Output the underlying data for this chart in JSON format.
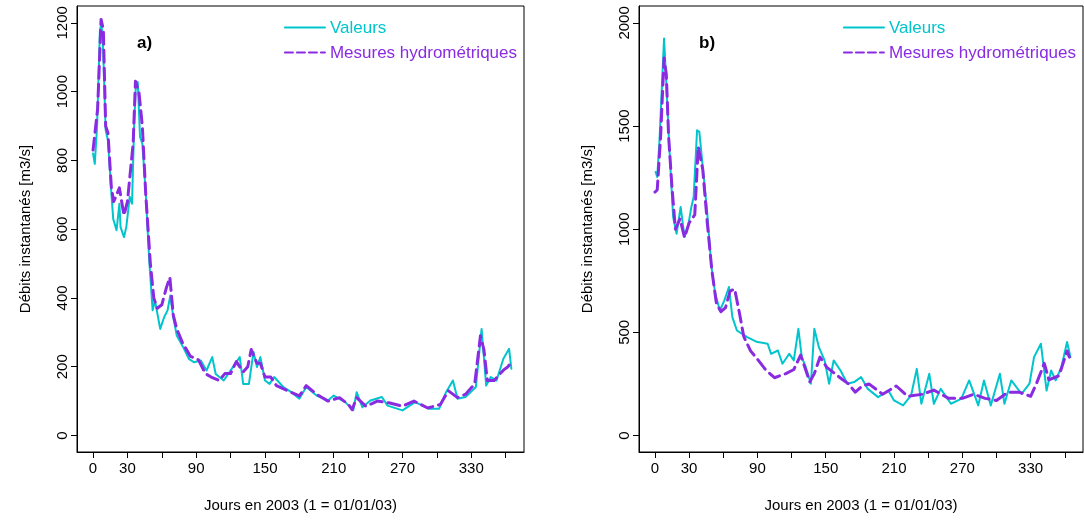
{
  "chart_data": [
    {
      "type": "line",
      "annotations": [
        "a)"
      ],
      "xlabel": "Jours en 2003 (1 = 01/01/03)",
      "ylabel": "Débits instantanés [m3/s]",
      "xlim": [
        -14,
        376
      ],
      "ylim": [
        -48,
        1249
      ],
      "xticks": [
        0,
        30,
        {
          "value": 60,
          "label": null
        },
        90,
        {
          "value": 120,
          "label": null
        },
        150,
        {
          "value": 180,
          "label": null
        },
        210,
        {
          "value": 240,
          "label": null
        },
        270,
        {
          "value": 300,
          "label": null
        },
        330,
        {
          "value": 360,
          "label": null
        }
      ],
      "yticks": [
        0,
        200,
        400,
        600,
        800,
        1000,
        1200
      ],
      "grid": false,
      "legend": "top right",
      "marker": "none",
      "series": [
        {
          "name": "Valeurs",
          "color": "#00c5cd",
          "line_style": "solid",
          "x": [
            0,
            1.5,
            3.5,
            6,
            7.3,
            8.8,
            11,
            13,
            16,
            17.6,
            20.5,
            23,
            24,
            27,
            29,
            32,
            34,
            36,
            37.5,
            39,
            41,
            43,
            46,
            49,
            52,
            54,
            58.6,
            62,
            65,
            67.4,
            70,
            73,
            78.6,
            83.6,
            88,
            94,
            99,
            104,
            107,
            114,
            122,
            128,
            131,
            136,
            140,
            143,
            146,
            150,
            154,
            158,
            166,
            173,
            180,
            186,
            195,
            205,
            210,
            220,
            227,
            230,
            235,
            242,
            252,
            257,
            270,
            281,
            293,
            302,
            308,
            314,
            318,
            325,
            334,
            339,
            343,
            347,
            352,
            358,
            363,
            365
          ],
          "values": [
            820,
            790,
            897,
            1179,
            1198,
            1120,
            888,
            858,
            703,
            630,
            597,
            674,
            606,
            577,
            606,
            694,
            674,
            917,
            1028,
            1028,
            868,
            849,
            703,
            509,
            364,
            393,
            310,
            344,
            364,
            407,
            344,
            291,
            257,
            223,
            213,
            218,
            189,
            228,
            179,
            160,
            199,
            228,
            150,
            150,
            243,
            199,
            228,
            160,
            150,
            170,
            141,
            126,
            107,
            141,
            116,
            102,
            116,
            97,
            73,
            126,
            82,
            102,
            112,
            87,
            73,
            97,
            78,
            78,
            126,
            160,
            107,
            112,
            141,
            310,
            145,
            170,
            160,
            223,
            252,
            194
          ]
        },
        {
          "name": "Mesures hydrométriques",
          "color": "#8a2be2",
          "line_style": "dashed",
          "x": [
            0,
            4,
            7,
            9,
            11,
            13,
            16,
            18,
            23,
            27,
            30,
            35,
            37,
            40,
            43,
            46,
            50,
            53,
            56,
            60,
            64,
            67,
            70,
            73,
            78,
            85,
            92,
            98,
            103,
            110,
            115,
            120,
            125,
            131,
            135,
            138,
            143,
            146,
            150,
            155,
            160,
            170,
            180,
            186,
            195,
            205,
            215,
            223,
            226,
            230,
            238,
            248,
            258,
            270,
            280,
            292,
            303,
            310,
            318,
            325,
            333,
            338,
            341,
            344,
            350,
            358,
            362,
            364
          ],
          "values": [
            830,
            950,
            1210,
            1180,
            900,
            880,
            720,
            680,
            720,
            640,
            680,
            850,
            1030,
            1000,
            900,
            700,
            500,
            400,
            370,
            380,
            430,
            460,
            350,
            310,
            270,
            230,
            220,
            180,
            170,
            160,
            180,
            180,
            215,
            185,
            200,
            250,
            210,
            210,
            170,
            170,
            145,
            130,
            115,
            145,
            120,
            100,
            110,
            90,
            75,
            110,
            85,
            100,
            95,
            85,
            100,
            80,
            90,
            130,
            110,
            120,
            150,
            290,
            250,
            160,
            160,
            190,
            200,
            210
          ]
        }
      ]
    },
    {
      "type": "line",
      "annotations": [
        "b)"
      ],
      "xlabel": "Jours en 2003 (1 = 01/01/03)",
      "ylabel": "Débits instantanés [m3/s]",
      "xlim": [
        -14,
        376
      ],
      "ylim": [
        -80,
        2082
      ],
      "xticks": [
        0,
        30,
        {
          "value": 60,
          "label": null
        },
        90,
        {
          "value": 120,
          "label": null
        },
        150,
        {
          "value": 180,
          "label": null
        },
        210,
        {
          "value": 240,
          "label": null
        },
        270,
        {
          "value": 300,
          "label": null
        },
        330,
        {
          "value": 360,
          "label": null
        }
      ],
      "yticks": [
        0,
        500,
        1000,
        1500,
        2000
      ],
      "grid": false,
      "legend": "top right",
      "marker": "none",
      "series": [
        {
          "name": "Valeurs",
          "color": "#00c5cd",
          "line_style": "solid",
          "x": [
            0.6,
            2,
            4,
            8,
            10,
            12.6,
            16,
            19,
            22.6,
            26,
            29,
            32,
            34,
            37,
            39,
            42,
            46,
            49.6,
            53,
            57,
            61,
            65,
            68,
            72,
            81,
            90,
            99,
            102,
            108,
            112,
            118,
            122,
            126,
            129,
            132.5,
            137,
            140,
            144,
            149,
            153,
            157,
            163,
            169,
            175,
            181,
            187,
            196,
            205,
            210,
            218,
            225,
            230,
            234,
            241,
            245,
            251,
            260,
            269,
            276,
            284,
            289,
            295,
            303,
            307,
            313,
            322,
            329,
            333,
            339,
            344,
            348,
            352,
            357,
            362,
            365
          ],
          "values": [
            1277,
            1253,
            1431,
            1924,
            1706,
            1399,
            1059,
            978,
            1108,
            962,
            1011,
            1108,
            1156,
            1480,
            1472,
            1302,
            1075,
            817,
            687,
            606,
            655,
            720,
            574,
            509,
            477,
            453,
            445,
            396,
            412,
            348,
            396,
            364,
            517,
            380,
            331,
            251,
            517,
            428,
            364,
            251,
            364,
            315,
            251,
            259,
            283,
            226,
            186,
            218,
            170,
            146,
            194,
            323,
            154,
            299,
            154,
            226,
            154,
            178,
            267,
            146,
            267,
            146,
            299,
            154,
            267,
            202,
            251,
            380,
            445,
            218,
            315,
            267,
            331,
            453,
            380
          ]
        },
        {
          "name": "Mesures hydrométriques",
          "color": "#8a2be2",
          "line_style": "dashed",
          "x": [
            0,
            2,
            5,
            8,
            10,
            12,
            15,
            18,
            22,
            26,
            30,
            35,
            38,
            42,
            46,
            50,
            54,
            58,
            62,
            66,
            70,
            74,
            78,
            84,
            90,
            97,
            105,
            115,
            122,
            128,
            136,
            140,
            145,
            151,
            158,
            165,
            170,
            176,
            182,
            188,
            200,
            212,
            222,
            235,
            245,
            258,
            270,
            280,
            290,
            300,
            310,
            320,
            330,
            335,
            342,
            346,
            355,
            362,
            364
          ],
          "values": [
            1180,
            1190,
            1450,
            1830,
            1750,
            1450,
            1200,
            1000,
            1050,
            960,
            1030,
            1070,
            1400,
            1290,
            1030,
            800,
            640,
            600,
            620,
            700,
            710,
            600,
            480,
            410,
            370,
            320,
            280,
            300,
            320,
            390,
            260,
            300,
            380,
            330,
            300,
            270,
            250,
            210,
            240,
            250,
            200,
            240,
            190,
            200,
            220,
            180,
            180,
            200,
            180,
            170,
            210,
            210,
            190,
            250,
            350,
            270,
            290,
            410,
            380
          ]
        }
      ]
    }
  ]
}
